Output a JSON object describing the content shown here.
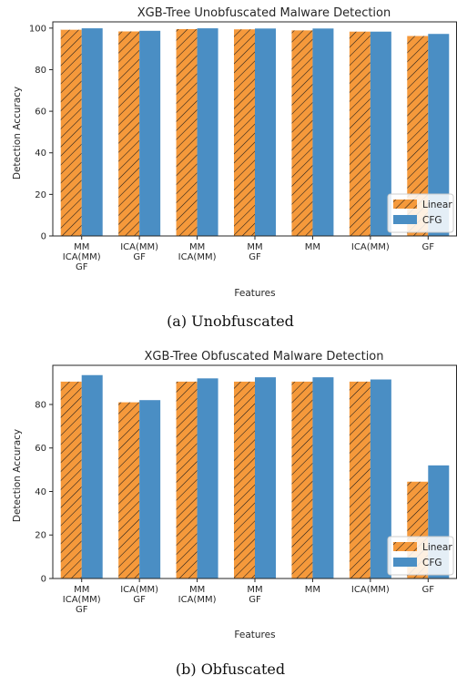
{
  "chart_data": [
    {
      "type": "bar",
      "title": "XGB-Tree Unobfuscated Malware Detection",
      "xlabel": "Features",
      "ylabel": "Detection Accuracy",
      "categories": [
        "MM\nICA(MM)\nGF",
        "ICA(MM)\nGF",
        "MM\nICA(MM)",
        "MM\nGF",
        "MM",
        "ICA(MM)",
        "GF"
      ],
      "series": [
        {
          "name": "Linear",
          "values": [
            99.2,
            98.4,
            99.5,
            99.4,
            98.9,
            98.3,
            96.2
          ]
        },
        {
          "name": "CFG",
          "values": [
            99.9,
            98.7,
            99.9,
            99.8,
            99.8,
            98.3,
            97.2
          ]
        }
      ],
      "ylim": [
        0,
        103
      ],
      "yticks": [
        0,
        20,
        40,
        60,
        80,
        100
      ],
      "legend": "bottom-right",
      "caption": "(a)  Unobfuscated"
    },
    {
      "type": "bar",
      "title": "XGB-Tree Obfuscated Malware Detection",
      "xlabel": "Features",
      "ylabel": "Detection Accuracy",
      "categories": [
        "MM\nICA(MM)\nGF",
        "ICA(MM)\nGF",
        "MM\nICA(MM)",
        "MM\nGF",
        "MM",
        "ICA(MM)",
        "GF"
      ],
      "series": [
        {
          "name": "Linear",
          "values": [
            90.5,
            81.0,
            90.5,
            90.5,
            90.5,
            90.5,
            44.5
          ]
        },
        {
          "name": "CFG",
          "values": [
            93.5,
            82.0,
            92.0,
            92.5,
            92.5,
            91.5,
            52.0
          ]
        }
      ],
      "ylim": [
        0,
        98
      ],
      "yticks": [
        0,
        20,
        40,
        60,
        80
      ],
      "legend": "bottom-right",
      "caption": "(b)  Obfuscated"
    }
  ],
  "colors": {
    "linear": "#f5993b",
    "cfg": "#4a8ec4",
    "hatch": "#1a1a1a",
    "axis": "#262626"
  }
}
